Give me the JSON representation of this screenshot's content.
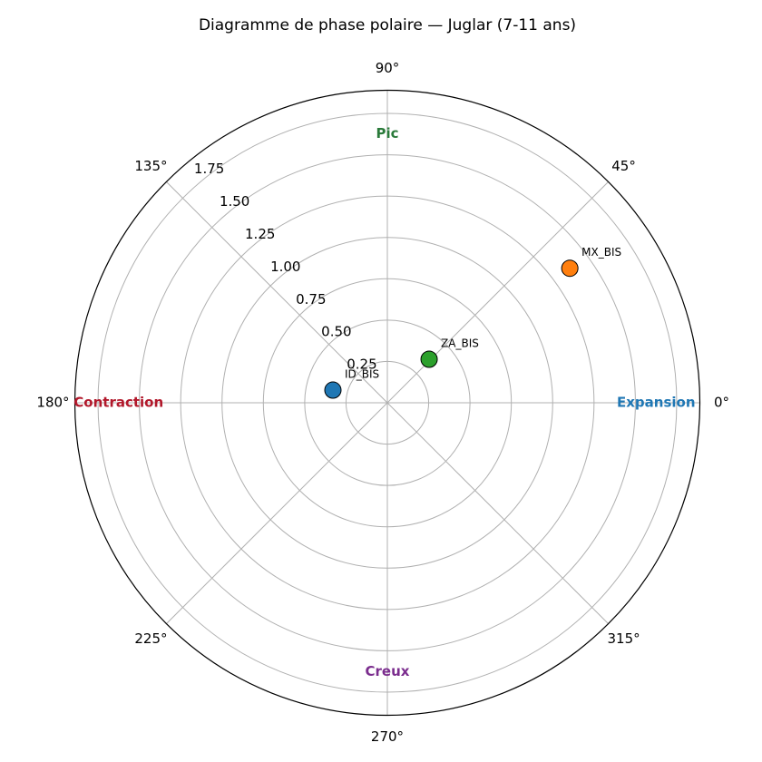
{
  "chart_data": {
    "type": "polar-scatter",
    "title": "Diagramme de phase polaire — Juglar (7-11 ans)",
    "rlim": [
      0,
      1.89
    ],
    "rticks": [
      0.25,
      0.5,
      0.75,
      1.0,
      1.25,
      1.5,
      1.75
    ],
    "rtick_labels": [
      "0.25",
      "0.50",
      "0.75",
      "1.00",
      "1.25",
      "1.50",
      "1.75"
    ],
    "thetaticks": [
      {
        "value": 0,
        "label": "0°"
      },
      {
        "value": 45,
        "label": "45°"
      },
      {
        "value": 90,
        "label": "90°"
      },
      {
        "value": 135,
        "label": "135°"
      },
      {
        "value": 180,
        "label": "180°"
      },
      {
        "value": 225,
        "label": "225°"
      },
      {
        "value": 270,
        "label": "270°"
      },
      {
        "value": 315,
        "label": "315°"
      }
    ],
    "grid": true,
    "phase_labels": [
      {
        "text": "Expansion",
        "angle": 0,
        "color": "#1f77b4"
      },
      {
        "text": "Pic",
        "angle": 90,
        "color": "#2a7a3a"
      },
      {
        "text": "Contraction",
        "angle": 180,
        "color": "#b2182b"
      },
      {
        "text": "Creux",
        "angle": 270,
        "color": "#7b2d8e"
      }
    ],
    "points": [
      {
        "name": "ID_BIS",
        "theta": 166.9,
        "r": 0.338,
        "color": "#1f77b4"
      },
      {
        "name": "MX_BIS",
        "theta": 36.4,
        "r": 1.371,
        "color": "#ff7f0e"
      },
      {
        "name": "ZA_BIS",
        "theta": 46.2,
        "r": 0.365,
        "color": "#2ca02c"
      }
    ]
  }
}
